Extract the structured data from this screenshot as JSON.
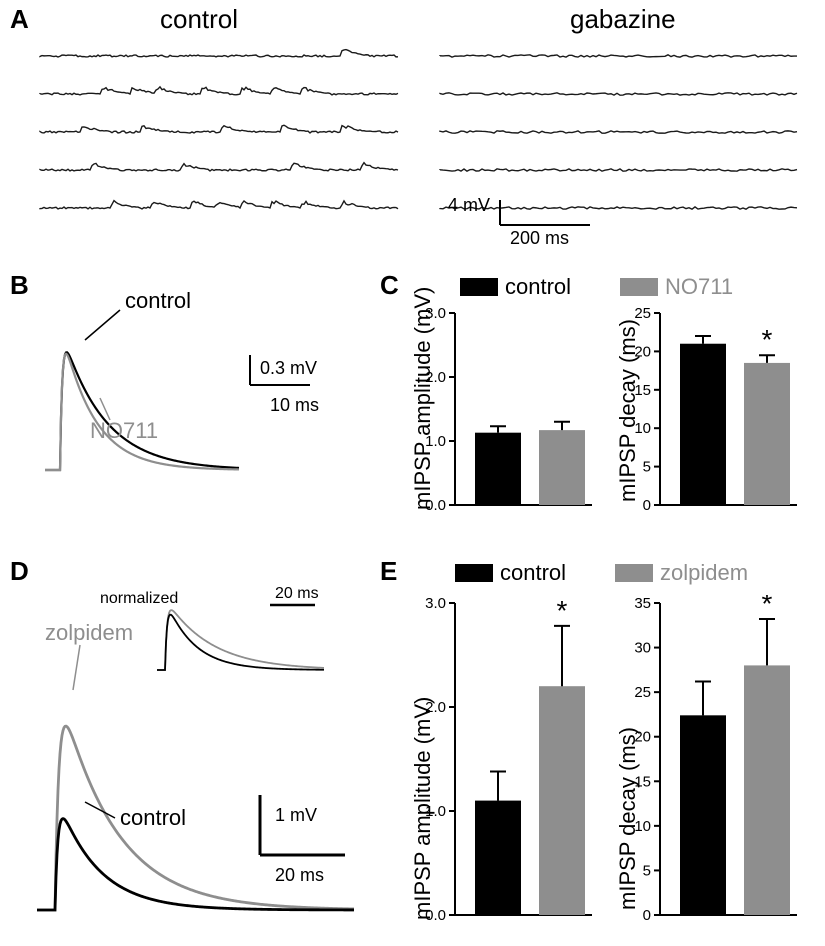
{
  "panelA": {
    "label": "A",
    "left_title": "control",
    "right_title": "gabazine",
    "scale_y": "4 mV",
    "scale_x": "200 ms",
    "trace_color": "#1a1a1a",
    "n_traces": 5
  },
  "panelB": {
    "label": "B",
    "trace_control_label": "control",
    "trace_drug_label": "NO711",
    "control_color": "#000000",
    "drug_color": "#8e8e8e",
    "scale_y": "0.3 mV",
    "scale_x": "10 ms"
  },
  "panelC": {
    "label": "C",
    "legend_control": "control",
    "legend_drug": "NO711",
    "control_color": "#000000",
    "drug_color": "#8e8e8e",
    "left_chart": {
      "ylabel": "mIPSP amplitude (mV)",
      "ylim": [
        0,
        3.0
      ],
      "yticks": [
        0.0,
        1.0,
        2.0,
        3.0
      ],
      "control_val": 1.13,
      "control_err": 0.1,
      "drug_val": 1.17,
      "drug_err": 0.13,
      "sig": false
    },
    "right_chart": {
      "ylabel": "mIPSP decay (ms)",
      "ylim": [
        0,
        25
      ],
      "yticks": [
        0,
        5,
        10,
        15,
        20,
        25
      ],
      "control_val": 21.0,
      "control_err": 1.0,
      "drug_val": 18.5,
      "drug_err": 1.0,
      "sig": true
    }
  },
  "panelD": {
    "label": "D",
    "trace_control_label": "control",
    "trace_drug_label": "zolpidem",
    "control_color": "#000000",
    "drug_color": "#8e8e8e",
    "scale_y": "1 mV",
    "scale_x": "20 ms",
    "inset_label": "normalized",
    "inset_scale_x": "20 ms"
  },
  "panelE": {
    "label": "E",
    "legend_control": "control",
    "legend_drug": "zolpidem",
    "control_color": "#000000",
    "drug_color": "#8e8e8e",
    "left_chart": {
      "ylabel": "mIPSP amplitude (mV)",
      "ylim": [
        0,
        3.0
      ],
      "yticks": [
        0.0,
        1.0,
        2.0,
        3.0
      ],
      "control_val": 1.1,
      "control_err": 0.28,
      "drug_val": 2.2,
      "drug_err": 0.58,
      "sig": true
    },
    "right_chart": {
      "ylabel": "mIPSP decay (ms)",
      "ylim": [
        0,
        35
      ],
      "yticks": [
        0,
        5,
        10,
        15,
        20,
        25,
        30,
        35
      ],
      "control_val": 22.4,
      "control_err": 3.8,
      "drug_val": 28.0,
      "drug_err": 5.2,
      "sig": true
    }
  }
}
